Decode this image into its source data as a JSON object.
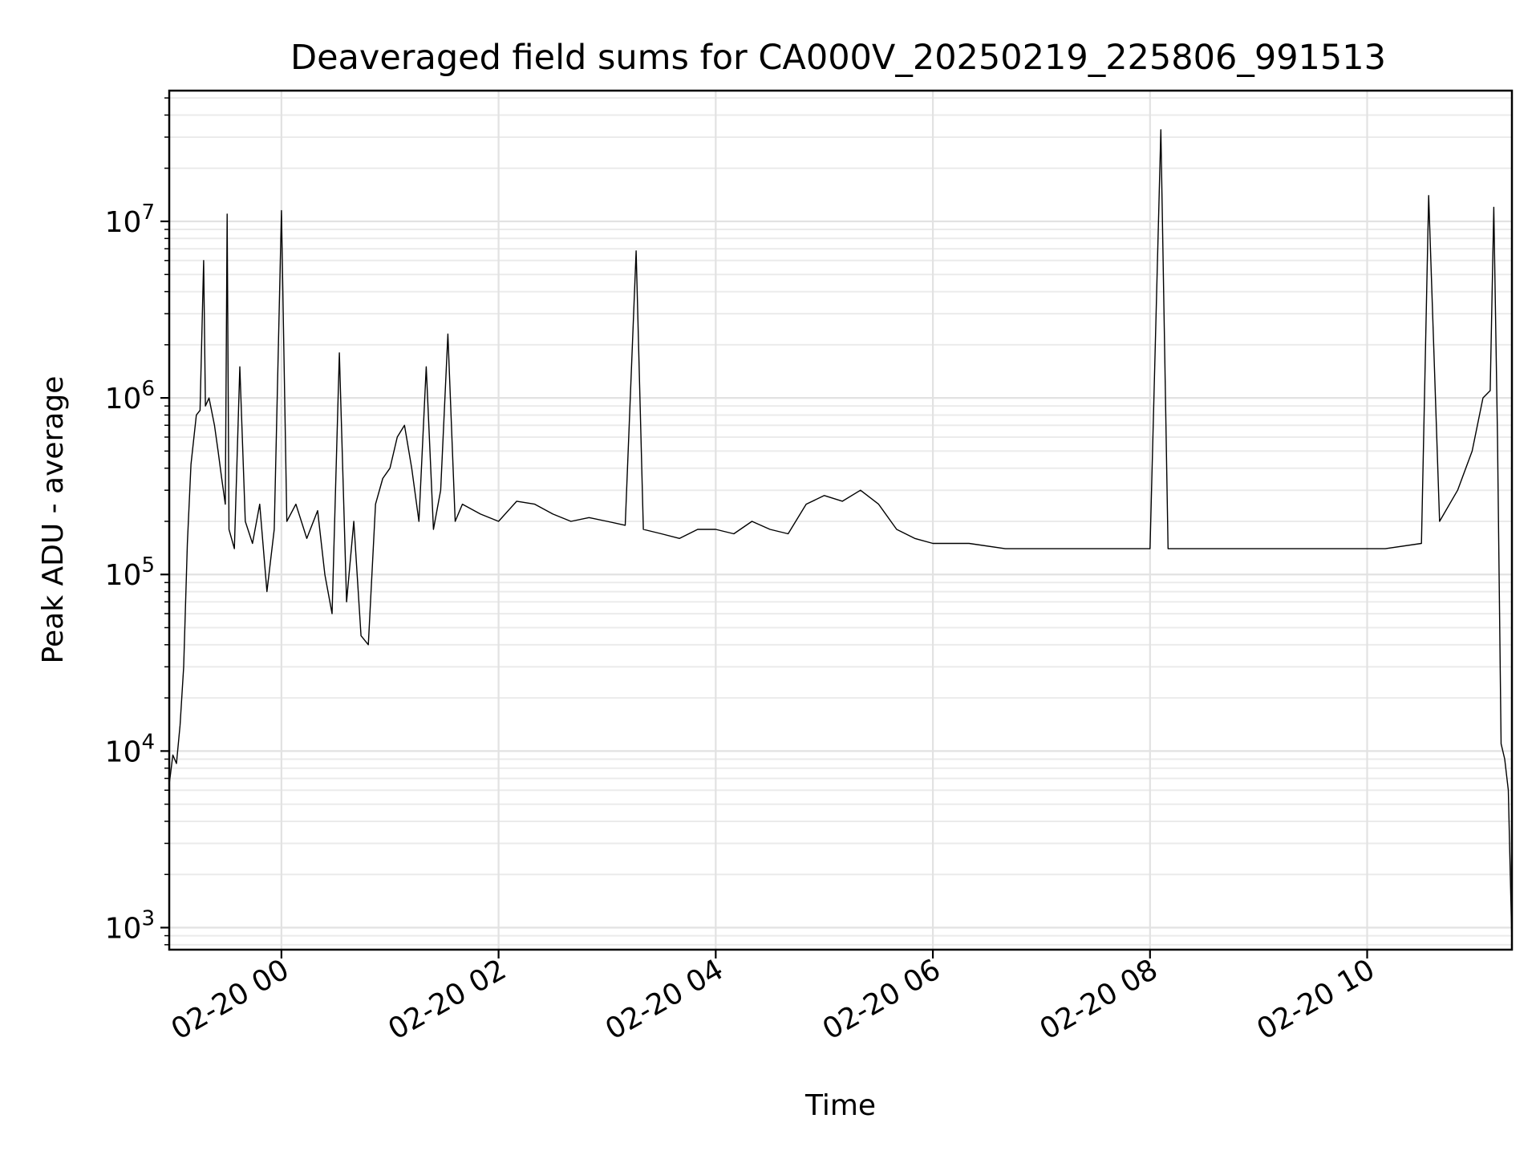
{
  "chart_data": {
    "type": "line",
    "title": "Deaveraged field sums for CA000V_20250219_225806_991513",
    "xlabel": "Time",
    "ylabel": "Peak ADU - average",
    "yscale": "log",
    "xlim": [
      "2025-02-19 22:58",
      "2025-02-20 11:20"
    ],
    "ylim": [
      750,
      55000000
    ],
    "grid": true,
    "line_color": "#000000",
    "x_ticks": [
      {
        "value": "2025-02-20 00:00",
        "label": "02-20 00"
      },
      {
        "value": "2025-02-20 02:00",
        "label": "02-20 02"
      },
      {
        "value": "2025-02-20 04:00",
        "label": "02-20 04"
      },
      {
        "value": "2025-02-20 06:00",
        "label": "02-20 06"
      },
      {
        "value": "2025-02-20 08:00",
        "label": "02-20 08"
      },
      {
        "value": "2025-02-20 10:00",
        "label": "02-20 10"
      }
    ],
    "y_ticks": [
      {
        "value": 1000,
        "base": "10",
        "exp": "3"
      },
      {
        "value": 10000,
        "base": "10",
        "exp": "4"
      },
      {
        "value": 100000,
        "base": "10",
        "exp": "5"
      },
      {
        "value": 1000000,
        "base": "10",
        "exp": "6"
      },
      {
        "value": 10000000,
        "base": "10",
        "exp": "7"
      }
    ],
    "series": [
      {
        "points": [
          [
            "2025-02-19 22:58",
            6500
          ],
          [
            "2025-02-19 23:00",
            9500
          ],
          [
            "2025-02-19 23:02",
            8500
          ],
          [
            "2025-02-19 23:04",
            14000
          ],
          [
            "2025-02-19 23:06",
            30000
          ],
          [
            "2025-02-19 23:08",
            150000
          ],
          [
            "2025-02-19 23:10",
            420000
          ],
          [
            "2025-02-19 23:13",
            800000
          ],
          [
            "2025-02-19 23:15",
            850000
          ],
          [
            "2025-02-19 23:17",
            6000000
          ],
          [
            "2025-02-19 23:18",
            900000
          ],
          [
            "2025-02-19 23:20",
            1000000
          ],
          [
            "2025-02-19 23:23",
            700000
          ],
          [
            "2025-02-19 23:25",
            500000
          ],
          [
            "2025-02-19 23:27",
            350000
          ],
          [
            "2025-02-19 23:29",
            250000
          ],
          [
            "2025-02-19 23:30",
            11000000
          ],
          [
            "2025-02-19 23:31",
            180000
          ],
          [
            "2025-02-19 23:34",
            140000
          ],
          [
            "2025-02-19 23:37",
            1500000
          ],
          [
            "2025-02-19 23:40",
            200000
          ],
          [
            "2025-02-19 23:44",
            150000
          ],
          [
            "2025-02-19 23:48",
            250000
          ],
          [
            "2025-02-19 23:52",
            80000
          ],
          [
            "2025-02-19 23:56",
            180000
          ],
          [
            "2025-02-20 00:00",
            11500000
          ],
          [
            "2025-02-20 00:03",
            200000
          ],
          [
            "2025-02-20 00:08",
            250000
          ],
          [
            "2025-02-20 00:14",
            160000
          ],
          [
            "2025-02-20 00:20",
            230000
          ],
          [
            "2025-02-20 00:24",
            100000
          ],
          [
            "2025-02-20 00:28",
            60000
          ],
          [
            "2025-02-20 00:32",
            1800000
          ],
          [
            "2025-02-20 00:36",
            70000
          ],
          [
            "2025-02-20 00:40",
            200000
          ],
          [
            "2025-02-20 00:44",
            45000
          ],
          [
            "2025-02-20 00:48",
            40000
          ],
          [
            "2025-02-20 00:52",
            250000
          ],
          [
            "2025-02-20 00:56",
            350000
          ],
          [
            "2025-02-20 01:00",
            400000
          ],
          [
            "2025-02-20 01:04",
            600000
          ],
          [
            "2025-02-20 01:08",
            700000
          ],
          [
            "2025-02-20 01:12",
            400000
          ],
          [
            "2025-02-20 01:16",
            200000
          ],
          [
            "2025-02-20 01:20",
            1500000
          ],
          [
            "2025-02-20 01:24",
            180000
          ],
          [
            "2025-02-20 01:28",
            300000
          ],
          [
            "2025-02-20 01:32",
            2300000
          ],
          [
            "2025-02-20 01:36",
            200000
          ],
          [
            "2025-02-20 01:40",
            250000
          ],
          [
            "2025-02-20 01:50",
            220000
          ],
          [
            "2025-02-20 02:00",
            200000
          ],
          [
            "2025-02-20 02:10",
            260000
          ],
          [
            "2025-02-20 02:20",
            250000
          ],
          [
            "2025-02-20 02:30",
            220000
          ],
          [
            "2025-02-20 02:40",
            200000
          ],
          [
            "2025-02-20 02:50",
            210000
          ],
          [
            "2025-02-20 03:00",
            200000
          ],
          [
            "2025-02-20 03:10",
            190000
          ],
          [
            "2025-02-20 03:16",
            6800000
          ],
          [
            "2025-02-20 03:20",
            180000
          ],
          [
            "2025-02-20 03:30",
            170000
          ],
          [
            "2025-02-20 03:40",
            160000
          ],
          [
            "2025-02-20 03:50",
            180000
          ],
          [
            "2025-02-20 04:00",
            180000
          ],
          [
            "2025-02-20 04:10",
            170000
          ],
          [
            "2025-02-20 04:20",
            200000
          ],
          [
            "2025-02-20 04:30",
            180000
          ],
          [
            "2025-02-20 04:40",
            170000
          ],
          [
            "2025-02-20 04:50",
            250000
          ],
          [
            "2025-02-20 05:00",
            280000
          ],
          [
            "2025-02-20 05:10",
            260000
          ],
          [
            "2025-02-20 05:20",
            300000
          ],
          [
            "2025-02-20 05:30",
            250000
          ],
          [
            "2025-02-20 05:40",
            180000
          ],
          [
            "2025-02-20 05:50",
            160000
          ],
          [
            "2025-02-20 06:00",
            150000
          ],
          [
            "2025-02-20 06:20",
            150000
          ],
          [
            "2025-02-20 06:40",
            140000
          ],
          [
            "2025-02-20 07:00",
            140000
          ],
          [
            "2025-02-20 07:20",
            140000
          ],
          [
            "2025-02-20 07:40",
            140000
          ],
          [
            "2025-02-20 08:00",
            140000
          ],
          [
            "2025-02-20 08:06",
            33000000
          ],
          [
            "2025-02-20 08:10",
            140000
          ],
          [
            "2025-02-20 08:30",
            140000
          ],
          [
            "2025-02-20 08:50",
            140000
          ],
          [
            "2025-02-20 09:10",
            140000
          ],
          [
            "2025-02-20 09:30",
            140000
          ],
          [
            "2025-02-20 09:50",
            140000
          ],
          [
            "2025-02-20 10:10",
            140000
          ],
          [
            "2025-02-20 10:30",
            150000
          ],
          [
            "2025-02-20 10:34",
            14000000
          ],
          [
            "2025-02-20 10:40",
            200000
          ],
          [
            "2025-02-20 10:50",
            300000
          ],
          [
            "2025-02-20 10:58",
            500000
          ],
          [
            "2025-02-20 11:04",
            1000000
          ],
          [
            "2025-02-20 11:08",
            1100000
          ],
          [
            "2025-02-20 11:10",
            12000000
          ],
          [
            "2025-02-20 11:12",
            600000
          ],
          [
            "2025-02-20 11:14",
            11000
          ],
          [
            "2025-02-20 11:16",
            9000
          ],
          [
            "2025-02-20 11:18",
            6000
          ],
          [
            "2025-02-20 11:20",
            800
          ]
        ]
      }
    ]
  }
}
